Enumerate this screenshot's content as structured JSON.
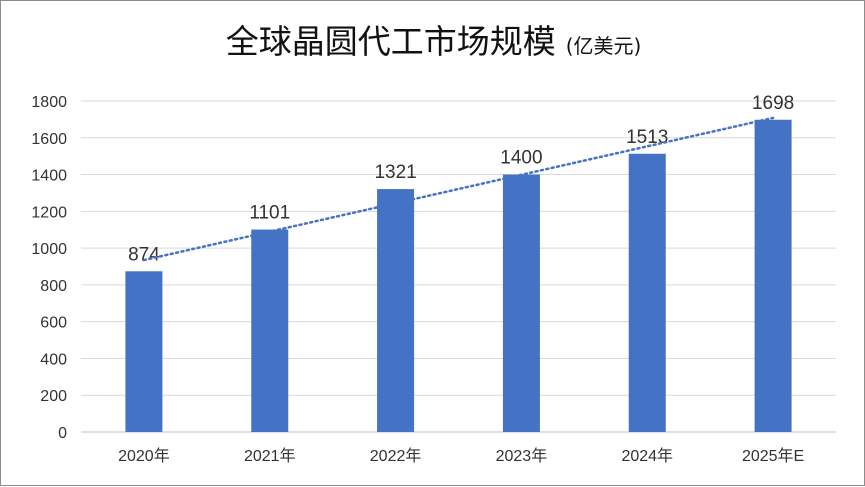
{
  "chart_data": {
    "type": "bar",
    "title": "全球晶圆代工市场规模",
    "subtitle": "(亿美元)",
    "categories": [
      "2020年",
      "2021年",
      "2022年",
      "2023年",
      "2024年",
      "2025年E"
    ],
    "series": [
      {
        "values": [
          874,
          1101,
          1321,
          1400,
          1513,
          1698
        ]
      }
    ],
    "data_labels": [
      "874",
      "1101",
      "1321",
      "1400",
      "1513",
      "1698"
    ],
    "yticks": [
      "0",
      "200",
      "400",
      "600",
      "800",
      "1000",
      "1200",
      "1400",
      "1600",
      "1800"
    ],
    "ylim": [
      0,
      1800
    ],
    "trendline": {
      "type": "linear",
      "style": "dotted",
      "from": [
        1,
        935
      ],
      "to": [
        6,
        1708
      ]
    },
    "grid": true,
    "legend": "none",
    "colors": {
      "bar": "#4472c4",
      "trendline": "#4472c4",
      "grid": "#d9d9d9",
      "axis": "#bfbfbf",
      "text": "#333333"
    }
  }
}
